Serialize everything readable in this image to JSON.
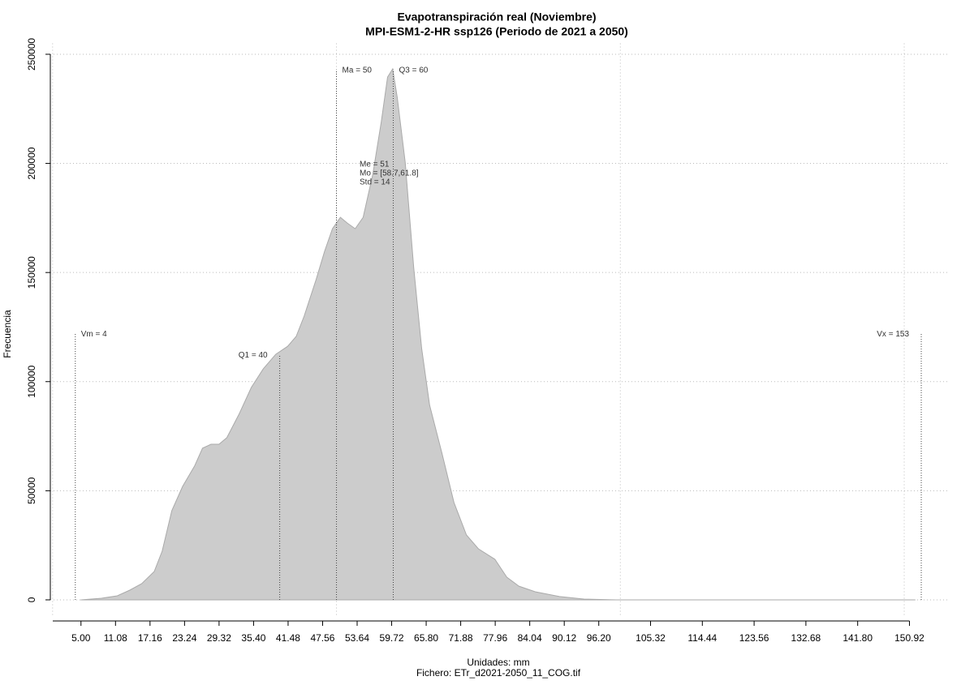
{
  "chart_data": {
    "type": "area",
    "title": "Evapotranspiración real (Noviembre)",
    "subtitle": "MPI-ESM1-2-HR ssp126 (Periodo de 2021 a 2050)",
    "x_label": "Unidades: mm",
    "x_sublabel": "Fichero: ETr_d2021-2050_11_COG.tif",
    "y_label": "Frecuencia",
    "color": "#cccccc",
    "x": [
      5.0,
      8.6,
      11.4,
      13.6,
      15.7,
      17.9,
      19.3,
      21.0,
      22.9,
      25.0,
      26.4,
      27.9,
      29.3,
      30.7,
      32.9,
      35.0,
      37.1,
      39.3,
      41.4,
      42.9,
      44.3,
      46.4,
      47.9,
      49.3,
      50.7,
      51.9,
      53.3,
      54.7,
      56.4,
      57.9,
      59.0,
      59.9,
      60.7,
      62.1,
      63.6,
      65.0,
      66.4,
      68.6,
      70.7,
      72.9,
      75.0,
      77.9,
      80.0,
      82.1,
      85.0,
      89.3,
      93.6,
      99.3,
      151.9
    ],
    "values": [
      0,
      743,
      1857,
      4457,
      7430,
      13000,
      22300,
      40900,
      52000,
      61300,
      69500,
      71300,
      71300,
      74300,
      85400,
      97300,
      105800,
      112500,
      116200,
      120700,
      130000,
      146700,
      159700,
      170100,
      175300,
      172700,
      170100,
      175300,
      195000,
      219200,
      239600,
      243300,
      230300,
      200600,
      152300,
      115200,
      89200,
      66900,
      44600,
      29700,
      23400,
      18600,
      10400,
      6300,
      3700,
      1500,
      370,
      0,
      0
    ],
    "xlim": [
      -0.4,
      158
    ],
    "ylim": [
      -8000,
      255000
    ],
    "xticks": [
      {
        "value": 5.0,
        "label": "5.00"
      },
      11.08,
      17.16,
      23.24,
      29.32,
      {
        "value": 35.4,
        "label": "35.40"
      },
      41.48,
      47.56,
      53.64,
      59.72,
      {
        "value": 65.8,
        "label": "65.80"
      },
      71.88,
      77.96,
      84.04,
      90.12,
      {
        "value": 96.2,
        "label": "96.20"
      },
      105.32,
      114.44,
      123.56,
      132.68,
      {
        "value": 141.8,
        "label": "141.80"
      },
      150.92
    ],
    "xgrid": [
      0,
      50,
      100,
      150
    ],
    "yticks": [
      0,
      50000,
      100000,
      150000,
      200000,
      250000
    ],
    "grid": true,
    "annotations": [
      {
        "text": "Vm = 4",
        "x": 4,
        "y": 122000
      },
      {
        "text": "Q1 = 40",
        "x": 40,
        "y": 112500
      },
      {
        "text": "Ma = 50",
        "x": 50,
        "y": 243000
      },
      {
        "text": "Q3 = 60",
        "x": 60,
        "y": 243000
      },
      {
        "text": "Vx = 153",
        "x": 153,
        "y": 122000
      }
    ],
    "stats": [
      "Me = 51",
      "Mo = [58.7,61.8]",
      "Std = 14"
    ]
  }
}
